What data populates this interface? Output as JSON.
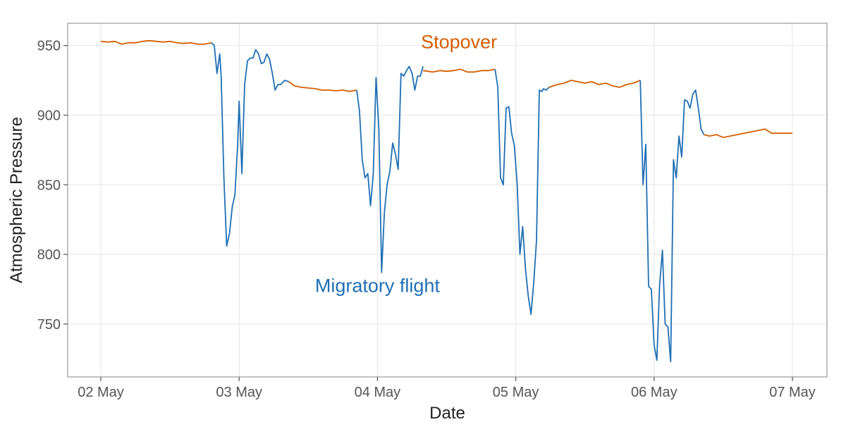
{
  "chart_data": {
    "type": "line",
    "xlabel": "Date",
    "ylabel": "Atmospheric Pressure",
    "xlim": [
      2.0,
      7.0
    ],
    "ylim": [
      712,
      966
    ],
    "x_ticks": [
      {
        "value": 2,
        "label": "02 May"
      },
      {
        "value": 3,
        "label": "03 May"
      },
      {
        "value": 4,
        "label": "04 May"
      },
      {
        "value": 5,
        "label": "05 May"
      },
      {
        "value": 6,
        "label": "06 May"
      },
      {
        "value": 7,
        "label": "07 May"
      }
    ],
    "y_ticks": [
      750,
      800,
      850,
      900,
      950
    ],
    "x_unit": "day of May",
    "grid": true,
    "annotations": [
      {
        "text": "Stopover",
        "x": 4.59,
        "y": 948,
        "color": "#d55e00"
      },
      {
        "text": "Migratory flight",
        "x": 4.0,
        "y": 773,
        "color": "#1f6fb5"
      }
    ],
    "series": [
      {
        "color": "#d55e00",
        "x": [
          2.0,
          2.05,
          2.1,
          2.15,
          2.2,
          2.25,
          2.3,
          2.35,
          2.4,
          2.45,
          2.5,
          2.55,
          2.6,
          2.65,
          2.7,
          2.75,
          2.8
        ],
        "y": [
          953,
          952.5,
          953,
          951,
          952,
          952,
          953,
          953.5,
          953,
          952.5,
          953,
          952,
          951.5,
          952,
          951,
          951,
          952
        ]
      },
      {
        "color": "#1f6fb5",
        "x": [
          2.8,
          2.82,
          2.84,
          2.86,
          2.87,
          2.89,
          2.91,
          2.93,
          2.95,
          2.97,
          2.99,
          3.0,
          3.02,
          3.04,
          3.06,
          3.08,
          3.1,
          3.12,
          3.14,
          3.16,
          3.18,
          3.2,
          3.22,
          3.24,
          3.26,
          3.28,
          3.3,
          3.33,
          3.36
        ],
        "y": [
          952,
          950,
          930,
          944,
          928,
          855,
          806,
          815,
          834,
          843,
          880,
          910,
          858,
          922,
          939,
          941,
          941,
          947,
          944,
          937,
          938,
          944,
          940,
          930,
          918,
          922,
          922,
          925,
          924
        ]
      },
      {
        "color": "#d55e00",
        "x": [
          3.36,
          3.4,
          3.45,
          3.5,
          3.55,
          3.6,
          3.65,
          3.7,
          3.75,
          3.8,
          3.85
        ],
        "y": [
          924,
          921,
          920,
          919.5,
          919,
          918,
          918,
          917.5,
          918,
          917,
          918
        ]
      },
      {
        "color": "#1f6fb5",
        "x": [
          3.85,
          3.87,
          3.89,
          3.91,
          3.93,
          3.95,
          3.97,
          3.99,
          4.01,
          4.03,
          4.05,
          4.07,
          4.09,
          4.11,
          4.13,
          4.15,
          4.17,
          4.19,
          4.21,
          4.23,
          4.25,
          4.27,
          4.29,
          4.31,
          4.33
        ],
        "y": [
          918,
          903,
          868,
          855,
          858,
          835,
          858,
          927,
          890,
          787,
          830,
          850,
          860,
          880,
          872,
          861,
          930,
          928,
          932,
          935,
          930,
          918,
          928,
          928,
          935
        ]
      },
      {
        "color": "#d55e00",
        "x": [
          4.33,
          4.4,
          4.45,
          4.5,
          4.55,
          4.6,
          4.65,
          4.7,
          4.75,
          4.8,
          4.85
        ],
        "y": [
          932,
          931,
          932,
          931.5,
          932,
          933,
          931,
          931,
          932,
          932,
          933
        ]
      },
      {
        "color": "#1f6fb5",
        "x": [
          4.85,
          4.87,
          4.89,
          4.91,
          4.93,
          4.95,
          4.97,
          4.99,
          5.01,
          5.03,
          5.05,
          5.07,
          5.09,
          5.11,
          5.13,
          5.15,
          5.17,
          5.19,
          5.2,
          5.22,
          5.24
        ],
        "y": [
          933,
          920,
          855,
          850,
          905,
          906,
          887,
          878,
          850,
          800,
          820,
          790,
          770,
          757,
          780,
          810,
          918,
          917,
          919,
          918,
          920
        ]
      },
      {
        "color": "#d55e00",
        "x": [
          5.24,
          5.3,
          5.35,
          5.4,
          5.45,
          5.5,
          5.55,
          5.6,
          5.65,
          5.7,
          5.75,
          5.8,
          5.85,
          5.9
        ],
        "y": [
          920,
          922,
          923,
          925,
          924,
          923,
          924,
          922,
          923,
          921,
          920,
          922,
          923,
          925
        ]
      },
      {
        "color": "#1f6fb5",
        "x": [
          5.9,
          5.92,
          5.94,
          5.96,
          5.98,
          6.0,
          6.02,
          6.04,
          6.06,
          6.08,
          6.1,
          6.12,
          6.14,
          6.16,
          6.18,
          6.2,
          6.22,
          6.24,
          6.26,
          6.28,
          6.3,
          6.32,
          6.34,
          6.36
        ],
        "y": [
          925,
          850,
          879,
          777,
          775,
          735,
          724,
          778,
          803,
          750,
          748,
          723,
          868,
          855,
          885,
          870,
          911,
          910,
          905,
          915,
          918,
          905,
          890,
          886
        ]
      },
      {
        "color": "#d55e00",
        "x": [
          6.36,
          6.4,
          6.45,
          6.5,
          6.55,
          6.6,
          6.65,
          6.7,
          6.75,
          6.8,
          6.85,
          6.9,
          6.95,
          7.0
        ],
        "y": [
          886,
          885,
          886,
          884,
          885,
          886,
          887,
          888,
          889,
          890,
          887,
          887,
          887,
          887
        ]
      }
    ]
  }
}
